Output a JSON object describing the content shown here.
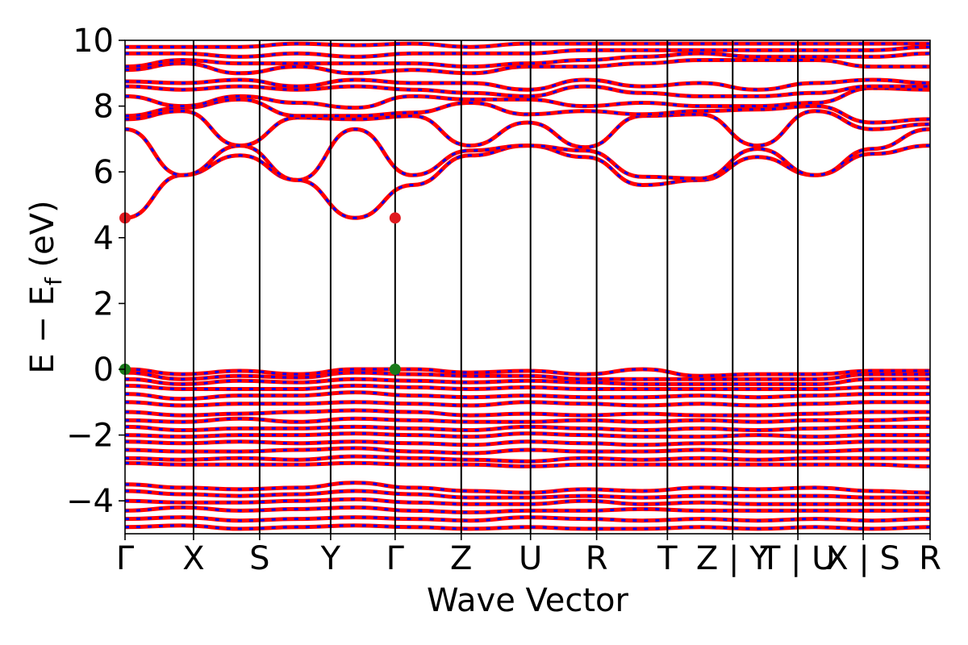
{
  "chart_data": {
    "type": "line",
    "title": "",
    "xlabel": "Wave Vector",
    "ylabel_main": "E − E",
    "ylabel_sub": "f",
    "ylabel_unit": "(eV)",
    "ylim": [
      -5,
      10
    ],
    "yticks": [
      -4,
      -2,
      0,
      2,
      4,
      6,
      8,
      10
    ],
    "ytick_labels": [
      "−4",
      "−2",
      "0",
      "2",
      "4",
      "6",
      "8",
      "10"
    ],
    "kpath_labels": [
      "Γ",
      "X",
      "S",
      "Y",
      "Γ",
      "Z",
      "U",
      "R",
      "T",
      "Z | Y",
      "T | U",
      "X | S",
      "R"
    ],
    "kpath_positions": [
      0,
      0.0851,
      0.1672,
      0.2554,
      0.3355,
      0.4176,
      0.5037,
      0.5858,
      0.6737,
      0.7548,
      0.8358,
      0.9169,
      1.0
    ],
    "grid": false,
    "legend": "none",
    "colors": {
      "band_solid": "#ff0000",
      "band_dashed": "#0000ff",
      "vbm_marker": "#1a7a1a",
      "cbm_marker": "#e0191f"
    },
    "markers": [
      {
        "name": "CBM",
        "k": 0.0,
        "E": 4.6,
        "color": "#e0191f"
      },
      {
        "name": "CBM",
        "k": 0.3355,
        "E": 4.6,
        "color": "#e0191f"
      },
      {
        "name": "VBM",
        "k": 0.0,
        "E": 0.0,
        "color": "#1a7a1a"
      },
      {
        "name": "VBM",
        "k": 0.3355,
        "E": 0.0,
        "color": "#1a7a1a"
      }
    ],
    "conduction_bands": [
      [
        4.6,
        5.9,
        6.5,
        5.75,
        4.6,
        5.6,
        6.5,
        6.8,
        6.45,
        5.6,
        5.75,
        6.45,
        5.9,
        6.55,
        6.8
      ],
      [
        7.3,
        5.9,
        6.8,
        5.75,
        7.3,
        5.9,
        6.65,
        6.8,
        6.65,
        5.85,
        5.8,
        6.7,
        5.9,
        6.7,
        7.3
      ],
      [
        7.6,
        7.85,
        6.8,
        7.65,
        7.6,
        7.7,
        6.8,
        7.5,
        6.75,
        7.7,
        7.75,
        6.8,
        7.85,
        7.3,
        7.45
      ],
      [
        7.7,
        7.95,
        8.2,
        7.7,
        7.7,
        7.8,
        8.1,
        7.75,
        7.85,
        7.75,
        7.85,
        7.9,
        8.0,
        7.5,
        7.6
      ],
      [
        8.3,
        8.0,
        8.3,
        8.1,
        7.95,
        8.3,
        8.2,
        8.2,
        8.0,
        8.1,
        8.0,
        8.0,
        8.1,
        8.55,
        8.5
      ],
      [
        8.6,
        8.5,
        8.6,
        8.5,
        8.6,
        8.5,
        8.4,
        8.3,
        8.6,
        8.4,
        8.3,
        8.3,
        8.4,
        8.6,
        8.6
      ],
      [
        8.75,
        8.7,
        8.8,
        8.6,
        8.8,
        8.7,
        8.7,
        8.5,
        8.8,
        8.6,
        8.7,
        8.5,
        8.7,
        8.8,
        8.7
      ],
      [
        9.1,
        9.3,
        9.0,
        9.2,
        9.0,
        9.1,
        9.0,
        9.2,
        9.2,
        9.3,
        9.4,
        9.4,
        9.4,
        9.2,
        9.2
      ],
      [
        9.2,
        9.4,
        9.3,
        9.3,
        9.3,
        9.3,
        9.2,
        9.3,
        9.4,
        9.5,
        9.6,
        9.5,
        9.5,
        9.5,
        9.6
      ],
      [
        9.6,
        9.6,
        9.5,
        9.6,
        9.5,
        9.6,
        9.6,
        9.6,
        9.7,
        9.7,
        9.7,
        9.7,
        9.7,
        9.7,
        9.8
      ],
      [
        9.8,
        9.8,
        9.8,
        9.9,
        9.85,
        9.9,
        9.8,
        9.9,
        9.9,
        9.9,
        9.9,
        9.9,
        9.9,
        9.9,
        9.9
      ]
    ],
    "valence_bands": [
      [
        0.0,
        -0.15,
        -0.05,
        -0.15,
        0.0,
        0.0,
        -0.1,
        -0.05,
        -0.15,
        0.0,
        -0.2,
        -0.15,
        -0.15,
        -0.05,
        -0.05
      ],
      [
        -0.1,
        -0.3,
        -0.2,
        -0.25,
        -0.1,
        -0.15,
        -0.2,
        -0.2,
        -0.3,
        -0.3,
        -0.3,
        -0.3,
        -0.3,
        -0.15,
        -0.15
      ],
      [
        -0.3,
        -0.45,
        -0.35,
        -0.4,
        -0.3,
        -0.35,
        -0.4,
        -0.35,
        -0.4,
        -0.45,
        -0.45,
        -0.45,
        -0.45,
        -0.3,
        -0.3
      ],
      [
        -0.5,
        -0.6,
        -0.6,
        -0.6,
        -0.5,
        -0.55,
        -0.6,
        -0.55,
        -0.6,
        -0.6,
        -0.6,
        -0.6,
        -0.6,
        -0.55,
        -0.55
      ],
      [
        -0.75,
        -0.9,
        -0.8,
        -0.8,
        -0.7,
        -0.8,
        -0.85,
        -0.8,
        -0.85,
        -0.85,
        -0.8,
        -0.85,
        -0.8,
        -0.75,
        -0.75
      ],
      [
        -1.0,
        -1.1,
        -1.05,
        -1.05,
        -1.0,
        -1.05,
        -1.1,
        -1.0,
        -1.05,
        -1.1,
        -1.05,
        -1.1,
        -1.05,
        -1.0,
        -1.0
      ],
      [
        -1.3,
        -1.4,
        -1.35,
        -1.3,
        -1.25,
        -1.3,
        -1.4,
        -1.35,
        -1.4,
        -1.35,
        -1.4,
        -1.4,
        -1.35,
        -1.3,
        -1.3
      ],
      [
        -1.55,
        -1.6,
        -1.5,
        -1.6,
        -1.5,
        -1.55,
        -1.6,
        -1.6,
        -1.55,
        -1.6,
        -1.55,
        -1.6,
        -1.55,
        -1.55,
        -1.5
      ],
      [
        -1.75,
        -1.85,
        -1.8,
        -1.8,
        -1.75,
        -1.8,
        -1.85,
        -1.75,
        -1.8,
        -1.85,
        -1.8,
        -1.85,
        -1.8,
        -1.75,
        -1.75
      ],
      [
        -2.0,
        -2.05,
        -2.0,
        -2.0,
        -1.95,
        -2.0,
        -2.05,
        -1.95,
        -2.0,
        -2.05,
        -2.05,
        -2.0,
        -2.05,
        -2.0,
        -2.0
      ],
      [
        -2.2,
        -2.25,
        -2.2,
        -2.25,
        -2.2,
        -2.25,
        -2.3,
        -2.2,
        -2.25,
        -2.3,
        -2.25,
        -2.25,
        -2.25,
        -2.2,
        -2.2
      ],
      [
        -2.45,
        -2.5,
        -2.5,
        -2.45,
        -2.4,
        -2.5,
        -2.55,
        -2.45,
        -2.5,
        -2.5,
        -2.45,
        -2.5,
        -2.5,
        -2.45,
        -2.45
      ],
      [
        -2.7,
        -2.75,
        -2.7,
        -2.75,
        -2.65,
        -2.7,
        -2.75,
        -2.8,
        -2.7,
        -2.75,
        -2.7,
        -2.75,
        -2.7,
        -2.7,
        -2.7
      ],
      [
        -2.85,
        -2.9,
        -2.9,
        -2.9,
        -2.85,
        -2.9,
        -2.9,
        -2.95,
        -2.9,
        -2.9,
        -2.9,
        -2.9,
        -2.9,
        -2.9,
        -2.95
      ],
      [
        -3.5,
        -3.6,
        -3.65,
        -3.6,
        -3.45,
        -3.6,
        -3.7,
        -3.75,
        -3.65,
        -3.7,
        -3.6,
        -3.65,
        -3.6,
        -3.7,
        -3.75
      ],
      [
        -3.7,
        -3.8,
        -3.85,
        -3.8,
        -3.7,
        -3.8,
        -3.9,
        -3.9,
        -3.85,
        -3.9,
        -3.85,
        -3.85,
        -3.85,
        -3.9,
        -3.9
      ],
      [
        -4.0,
        -4.05,
        -4.05,
        -4.0,
        -3.95,
        -4.05,
        -4.1,
        -4.1,
        -4.0,
        -4.1,
        -4.05,
        -4.1,
        -4.1,
        -4.1,
        -4.1
      ],
      [
        -4.3,
        -4.2,
        -4.3,
        -4.25,
        -4.2,
        -4.3,
        -4.35,
        -4.3,
        -4.3,
        -4.25,
        -4.3,
        -4.3,
        -4.3,
        -4.3,
        -4.3
      ],
      [
        -4.55,
        -4.5,
        -4.6,
        -4.55,
        -4.5,
        -4.55,
        -4.6,
        -4.5,
        -4.55,
        -4.6,
        -4.55,
        -4.6,
        -4.55,
        -4.6,
        -4.55
      ],
      [
        -4.8,
        -4.75,
        -4.85,
        -4.8,
        -4.75,
        -4.8,
        -4.85,
        -4.8,
        -4.85,
        -4.85,
        -4.8,
        -4.85,
        -4.8,
        -4.85,
        -4.8
      ]
    ]
  }
}
